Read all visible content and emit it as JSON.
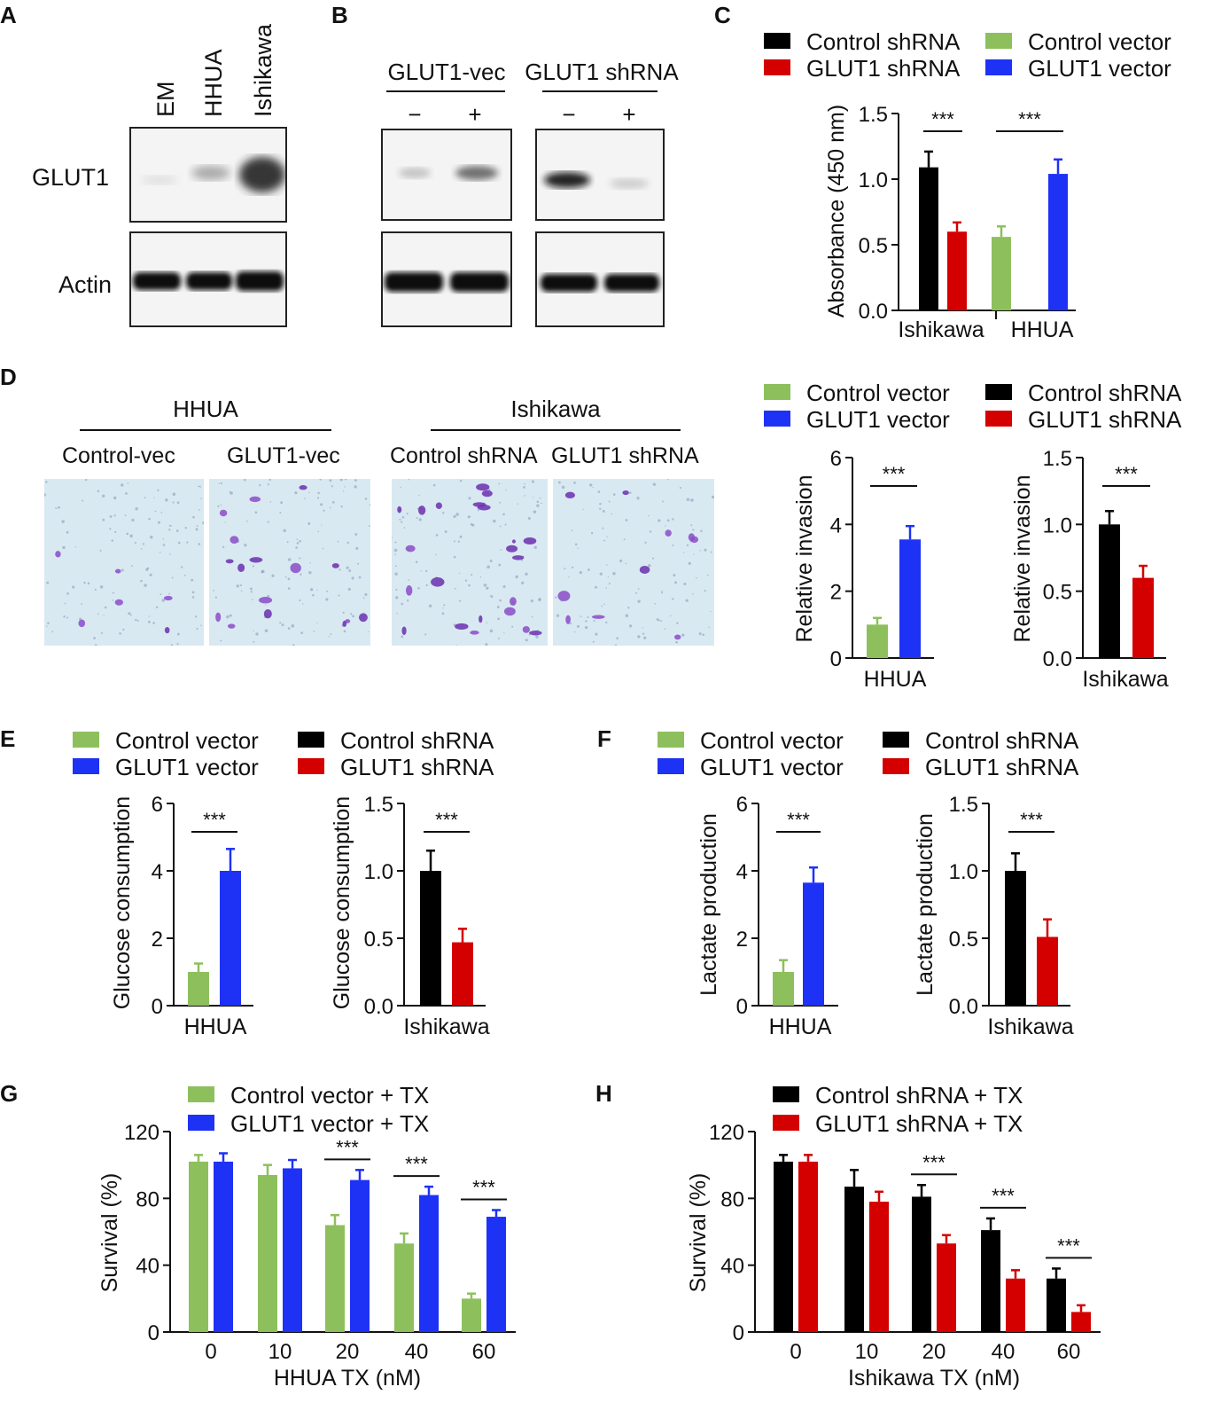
{
  "panel_letters": [
    "A",
    "B",
    "C",
    "D",
    "E",
    "F",
    "G",
    "H"
  ],
  "blot_a": {
    "lanes": [
      "EM",
      "HHUA",
      "Ishikawa"
    ],
    "rows": [
      "GLUT1",
      "Actin"
    ]
  },
  "blot_b": {
    "groups": [
      "GLUT1-vec",
      "GLUT1 shRNA"
    ],
    "signs": [
      "−",
      "+",
      "−",
      "+"
    ]
  },
  "invasion_images": {
    "groups": [
      "HHUA",
      "Ishikawa"
    ],
    "labels": [
      "Control-vec",
      "GLUT1-vec",
      "Control shRNA",
      "GLUT1 shRNA"
    ]
  },
  "colors": {
    "black": "#000000",
    "red": "#d40000",
    "green": "#8dc05c",
    "blue": "#1e32f5"
  },
  "chart_data": [
    {
      "id": "C",
      "type": "bar",
      "ylabel": "Absorbance (450 nm)",
      "ylim": [
        0,
        1.5
      ],
      "yticks": [
        "0.0",
        "0.5",
        "1.0",
        "1.5"
      ],
      "groups": [
        "Ishikawa",
        "HHUA"
      ],
      "legend": [
        "Control shRNA",
        "GLUT1 shRNA",
        "Control vector",
        "GLUT1 vector"
      ],
      "bars": [
        {
          "group": "Ishikawa",
          "series": "Control shRNA",
          "value": 1.09,
          "err": 0.12
        },
        {
          "group": "Ishikawa",
          "series": "GLUT1 shRNA",
          "value": 0.6,
          "err": 0.07
        },
        {
          "group": "HHUA",
          "series": "Control vector",
          "value": 0.56,
          "err": 0.08
        },
        {
          "group": "HHUA",
          "series": "GLUT1 vector",
          "value": 1.04,
          "err": 0.11
        }
      ],
      "significance": [
        "***",
        "***"
      ]
    },
    {
      "id": "D1",
      "type": "bar",
      "ylabel": "Relative invasion",
      "ylim": [
        0,
        6
      ],
      "yticks": [
        "0",
        "2",
        "4",
        "6"
      ],
      "xlabel": "HHUA",
      "legend": [
        "Control vector",
        "GLUT1 vector"
      ],
      "bars": [
        {
          "series": "Control vector",
          "value": 1.0,
          "err": 0.2
        },
        {
          "series": "GLUT1 vector",
          "value": 3.55,
          "err": 0.4
        }
      ],
      "significance": [
        "***"
      ]
    },
    {
      "id": "D2",
      "type": "bar",
      "ylabel": "Relative invasion",
      "ylim": [
        0,
        1.5
      ],
      "yticks": [
        "0.0",
        "0.5",
        "1.0",
        "1.5"
      ],
      "xlabel": "Ishikawa",
      "legend": [
        "Control shRNA",
        "GLUT1 shRNA"
      ],
      "bars": [
        {
          "series": "Control shRNA",
          "value": 1.0,
          "err": 0.1
        },
        {
          "series": "GLUT1 shRNA",
          "value": 0.6,
          "err": 0.09
        }
      ],
      "significance": [
        "***"
      ]
    },
    {
      "id": "E1",
      "type": "bar",
      "ylabel": "Glucose consumption",
      "ylim": [
        0,
        6
      ],
      "yticks": [
        "0",
        "2",
        "4",
        "6"
      ],
      "xlabel": "HHUA",
      "legend": [
        "Control vector",
        "GLUT1 vector"
      ],
      "bars": [
        {
          "series": "Control vector",
          "value": 1.0,
          "err": 0.25
        },
        {
          "series": "GLUT1 vector",
          "value": 4.0,
          "err": 0.65
        }
      ],
      "significance": [
        "***"
      ]
    },
    {
      "id": "E2",
      "type": "bar",
      "ylabel": "Glucose consumption",
      "ylim": [
        0,
        1.5
      ],
      "yticks": [
        "0.0",
        "0.5",
        "1.0",
        "1.5"
      ],
      "xlabel": "Ishikawa",
      "legend": [
        "Control shRNA",
        "GLUT1 shRNA"
      ],
      "bars": [
        {
          "series": "Control shRNA",
          "value": 1.0,
          "err": 0.15
        },
        {
          "series": "GLUT1 shRNA",
          "value": 0.47,
          "err": 0.1
        }
      ],
      "significance": [
        "***"
      ]
    },
    {
      "id": "F1",
      "type": "bar",
      "ylabel": "Lactate production",
      "ylim": [
        0,
        6
      ],
      "yticks": [
        "0",
        "2",
        "4",
        "6"
      ],
      "xlabel": "HHUA",
      "legend": [
        "Control vector",
        "GLUT1 vector"
      ],
      "bars": [
        {
          "series": "Control vector",
          "value": 1.0,
          "err": 0.35
        },
        {
          "series": "GLUT1 vector",
          "value": 3.65,
          "err": 0.45
        }
      ],
      "significance": [
        "***"
      ]
    },
    {
      "id": "F2",
      "type": "bar",
      "ylabel": "Lactate production",
      "ylim": [
        0,
        1.5
      ],
      "yticks": [
        "0.0",
        "0.5",
        "1.0",
        "1.5"
      ],
      "xlabel": "Ishikawa",
      "legend": [
        "Control shRNA",
        "GLUT1 shRNA"
      ],
      "bars": [
        {
          "series": "Control shRNA",
          "value": 1.0,
          "err": 0.13
        },
        {
          "series": "GLUT1 shRNA",
          "value": 0.51,
          "err": 0.13
        }
      ],
      "significance": [
        "***"
      ]
    },
    {
      "id": "G",
      "type": "bar",
      "ylabel": "Survival (%)",
      "xlabel": "HHUA TX (nM)",
      "ylim": [
        0,
        120
      ],
      "yticks": [
        "0",
        "40",
        "80",
        "120"
      ],
      "categories": [
        "0",
        "10",
        "20",
        "40",
        "60"
      ],
      "series": [
        {
          "name": "Control vector + TX",
          "values": [
            102,
            94,
            64,
            53,
            20
          ],
          "err": [
            4,
            6,
            6,
            6,
            3
          ]
        },
        {
          "name": "GLUT1 vector + TX",
          "values": [
            102,
            98,
            91,
            82,
            69
          ],
          "err": [
            5,
            5,
            6,
            5,
            4
          ]
        }
      ],
      "significance": [
        "",
        "",
        "***",
        "***",
        "***"
      ]
    },
    {
      "id": "H",
      "type": "bar",
      "ylabel": "Survival (%)",
      "xlabel": "Ishikawa TX (nM)",
      "ylim": [
        0,
        120
      ],
      "yticks": [
        "0",
        "40",
        "80",
        "120"
      ],
      "categories": [
        "0",
        "10",
        "20",
        "40",
        "60"
      ],
      "series": [
        {
          "name": "Control shRNA + TX",
          "values": [
            102,
            87,
            81,
            61,
            32
          ],
          "err": [
            4,
            10,
            7,
            7,
            6
          ]
        },
        {
          "name": "GLUT1 shRNA + TX",
          "values": [
            102,
            78,
            53,
            32,
            12
          ],
          "err": [
            4,
            6,
            5,
            5,
            4
          ]
        }
      ],
      "significance": [
        "",
        "",
        "***",
        "***",
        "***"
      ]
    }
  ]
}
